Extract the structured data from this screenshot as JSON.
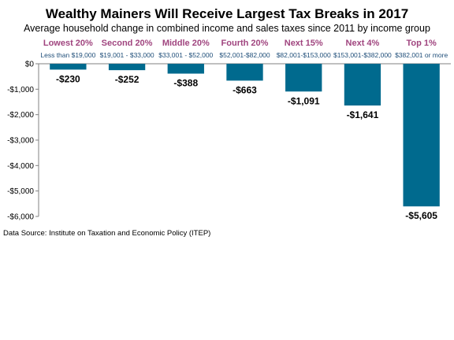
{
  "chart_data": {
    "type": "bar",
    "title": "Wealthy Mainers Will Receive Largest Tax Breaks in 2017",
    "subtitle": "Average household change in combined income and sales taxes since 2011 by income group",
    "categories": [
      "Lowest 20%",
      "Second 20%",
      "Middle 20%",
      "Fourth 20%",
      "Next 15%",
      "Next 4%",
      "Top 1%"
    ],
    "income_ranges": [
      "Less than $19,000",
      "$19,001 - $33,000",
      "$33,001 - $52,000",
      "$52,001-$82,000",
      "$82,001-$153,000",
      "$153,001-$382,000",
      "$382,001 or more"
    ],
    "values": [
      -230,
      -252,
      -388,
      -663,
      -1091,
      -1641,
      -5605
    ],
    "value_labels": [
      "-$230",
      "-$252",
      "-$388",
      "-$663",
      "-$1,091",
      "-$1,641",
      "-$5,605"
    ],
    "ylim": [
      -6000,
      0
    ],
    "yticks": [
      0,
      -1000,
      -2000,
      -3000,
      -4000,
      -5000,
      -6000
    ],
    "ytick_labels": [
      "$0",
      "-$1,000",
      "-$2,000",
      "-$3,000",
      "-$4,000",
      "-$5,000",
      "-$6,000"
    ],
    "xlabel": "",
    "ylabel": "",
    "grid": false,
    "legend": "none",
    "source": "Data Source: Institute on Taxation and Economic Policy (ITEP)",
    "colors": {
      "bar": "#006a8e",
      "category_label": "#a0457f",
      "range_label": "#1f4e79",
      "axis": "#808080"
    }
  }
}
